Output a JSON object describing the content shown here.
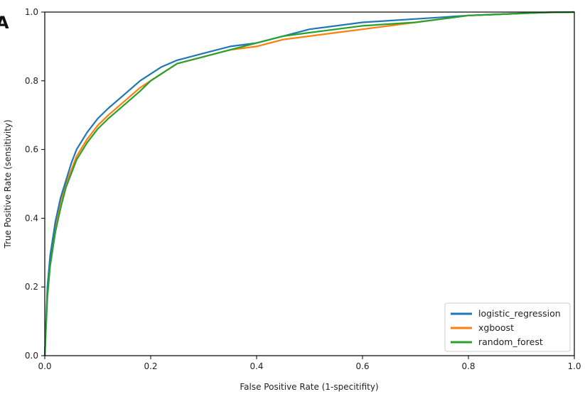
{
  "panel_letter": "A",
  "chart_data": {
    "type": "line",
    "title": "",
    "xlabel": "False Positive Rate (1-specitifity)",
    "ylabel": "True Positive Rate (sensitivity)",
    "xlim": [
      0,
      1
    ],
    "ylim": [
      0,
      1
    ],
    "xticks": [
      "0.0",
      "0.2",
      "0.4",
      "0.6",
      "0.8",
      "1.0"
    ],
    "yticks": [
      "0.0",
      "0.2",
      "0.4",
      "0.6",
      "0.8",
      "1.0"
    ],
    "grid": false,
    "legend_position": "lower-right",
    "series": [
      {
        "name": "logistic_regression",
        "color": "#1f77b4",
        "x": [
          0,
          0.005,
          0.01,
          0.02,
          0.03,
          0.04,
          0.05,
          0.06,
          0.08,
          0.1,
          0.12,
          0.15,
          0.18,
          0.2,
          0.22,
          0.25,
          0.3,
          0.35,
          0.4,
          0.45,
          0.5,
          0.55,
          0.6,
          0.65,
          0.7,
          0.75,
          0.8,
          0.85,
          0.9,
          0.95,
          1.0
        ],
        "y": [
          0,
          0.2,
          0.29,
          0.39,
          0.46,
          0.51,
          0.56,
          0.6,
          0.65,
          0.69,
          0.72,
          0.76,
          0.8,
          0.82,
          0.84,
          0.86,
          0.88,
          0.9,
          0.91,
          0.93,
          0.95,
          0.96,
          0.97,
          0.975,
          0.98,
          0.985,
          0.99,
          0.993,
          0.996,
          0.999,
          1.0
        ]
      },
      {
        "name": "xgboost",
        "color": "#ff7f0e",
        "x": [
          0,
          0.005,
          0.01,
          0.02,
          0.03,
          0.04,
          0.05,
          0.06,
          0.08,
          0.1,
          0.12,
          0.15,
          0.18,
          0.2,
          0.22,
          0.25,
          0.3,
          0.35,
          0.4,
          0.45,
          0.5,
          0.55,
          0.6,
          0.65,
          0.7,
          0.75,
          0.8,
          0.85,
          0.9,
          0.95,
          1.0
        ],
        "y": [
          0,
          0.19,
          0.28,
          0.38,
          0.45,
          0.5,
          0.54,
          0.58,
          0.63,
          0.67,
          0.7,
          0.74,
          0.78,
          0.8,
          0.82,
          0.85,
          0.87,
          0.89,
          0.9,
          0.92,
          0.93,
          0.94,
          0.95,
          0.96,
          0.97,
          0.98,
          0.99,
          0.993,
          0.996,
          0.999,
          1.0
        ]
      },
      {
        "name": "random_forest",
        "color": "#2ca02c",
        "x": [
          0,
          0.005,
          0.01,
          0.02,
          0.03,
          0.04,
          0.05,
          0.06,
          0.08,
          0.1,
          0.12,
          0.15,
          0.18,
          0.2,
          0.22,
          0.25,
          0.3,
          0.35,
          0.4,
          0.45,
          0.5,
          0.55,
          0.6,
          0.65,
          0.7,
          0.75,
          0.8,
          0.85,
          0.9,
          0.95,
          1.0
        ],
        "y": [
          0,
          0.17,
          0.26,
          0.36,
          0.43,
          0.49,
          0.53,
          0.57,
          0.62,
          0.66,
          0.69,
          0.73,
          0.77,
          0.8,
          0.82,
          0.85,
          0.87,
          0.89,
          0.91,
          0.93,
          0.94,
          0.95,
          0.96,
          0.965,
          0.97,
          0.98,
          0.99,
          0.993,
          0.996,
          0.999,
          1.0
        ]
      }
    ]
  }
}
